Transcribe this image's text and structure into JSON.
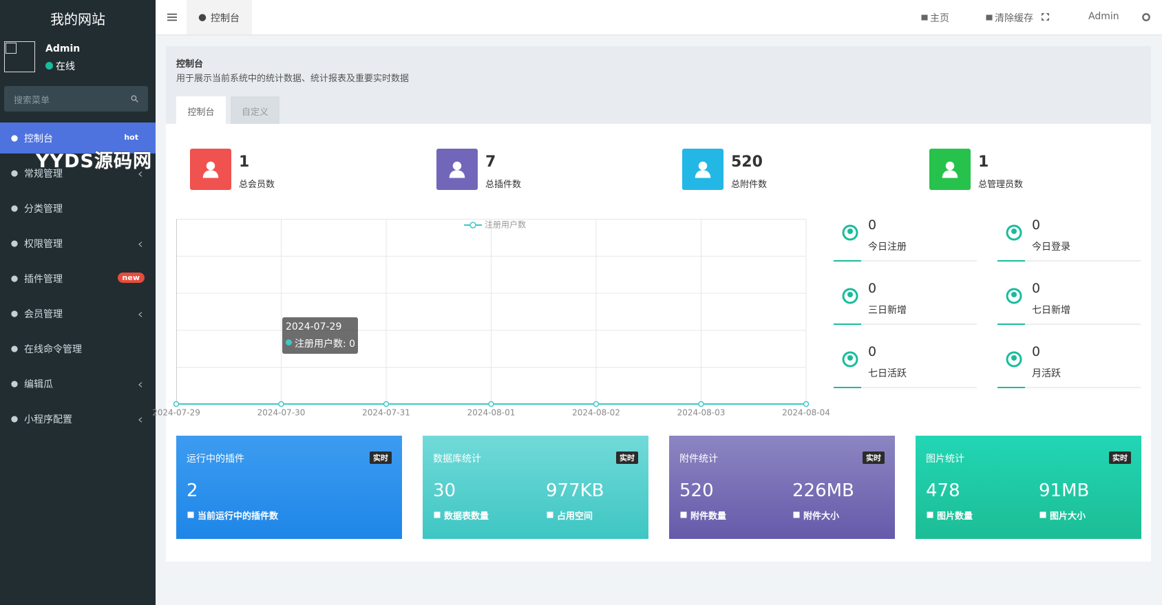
{
  "sidebar": {
    "logo": "我的网站",
    "user": {
      "name": "Admin",
      "status": "在线"
    },
    "search_placeholder": "搜索菜单",
    "watermark": "YYDS源码网",
    "menu": [
      {
        "label": "控制台",
        "badge": "hot",
        "active": true
      },
      {
        "label": "常规管理",
        "submenu": true
      },
      {
        "label": "分类管理"
      },
      {
        "label": "权限管理",
        "submenu": true
      },
      {
        "label": "插件管理",
        "badge": "new"
      },
      {
        "label": "会员管理",
        "submenu": true
      },
      {
        "label": "在线命令管理"
      },
      {
        "label": "编辑瓜",
        "submenu": true
      },
      {
        "label": "小程序配置",
        "submenu": true
      }
    ]
  },
  "topbar": {
    "tab": "控制台",
    "links": [
      "主页",
      "清除缓存"
    ],
    "user": "Admin"
  },
  "header": {
    "title": "控制台",
    "subtitle": "用于展示当前系统中的统计数据、统计报表及重要实时数据"
  },
  "tabs": [
    "控制台",
    "自定义"
  ],
  "stats": [
    {
      "value": 1,
      "label": "总会员数",
      "color": "#f0524f"
    },
    {
      "value": 7,
      "label": "总插件数",
      "color": "#7266ba"
    },
    {
      "value": 520,
      "label": "总附件数",
      "color": "#23b7e5"
    },
    {
      "value": 1,
      "label": "总管理员数",
      "color": "#27c24c"
    }
  ],
  "chart_data": {
    "type": "line",
    "categories": [
      "2024-07-29",
      "2024-07-30",
      "2024-07-31",
      "2024-08-01",
      "2024-08-02",
      "2024-08-03",
      "2024-08-04"
    ],
    "series": [
      {
        "name": "注册用户数",
        "color": "#3fc7c7",
        "values": [
          0,
          0,
          0,
          0,
          0,
          0,
          0
        ]
      }
    ],
    "ylim": [
      0,
      5
    ],
    "grid": true,
    "legend": "top",
    "tooltip": {
      "title": "2024-07-29",
      "text": "注册用户数: 0"
    }
  },
  "mini_stats": [
    {
      "value": 0,
      "label": "今日注册"
    },
    {
      "value": 0,
      "label": "今日登录"
    },
    {
      "value": 0,
      "label": "三日新增"
    },
    {
      "value": 0,
      "label": "七日新增"
    },
    {
      "value": 0,
      "label": "七日活跃"
    },
    {
      "value": 0,
      "label": "月活跃"
    }
  ],
  "cards": [
    {
      "title": "运行中的插件",
      "badge": "实时",
      "colors": [
        "#3d9cf0",
        "#1e86e8"
      ],
      "items": [
        {
          "value": 2,
          "label": "当前运行中的插件数"
        }
      ]
    },
    {
      "title": "数据库统计",
      "badge": "实时",
      "colors": [
        "#72dad9",
        "#3ec6c3"
      ],
      "items": [
        {
          "value": 30,
          "label": "数据表数量"
        },
        {
          "value": "977KB",
          "label": "占用空间"
        }
      ]
    },
    {
      "title": "附件统计",
      "badge": "实时",
      "colors": [
        "#8c86c2",
        "#655aaa"
      ],
      "items": [
        {
          "value": 520,
          "label": "附件数量"
        },
        {
          "value": "226MB",
          "label": "附件大小"
        }
      ]
    },
    {
      "title": "图片统计",
      "badge": "实时",
      "colors": [
        "#22d6b5",
        "#1cbd95"
      ],
      "items": [
        {
          "value": 478,
          "label": "图片数量"
        },
        {
          "value": "91MB",
          "label": "图片大小"
        }
      ]
    }
  ]
}
